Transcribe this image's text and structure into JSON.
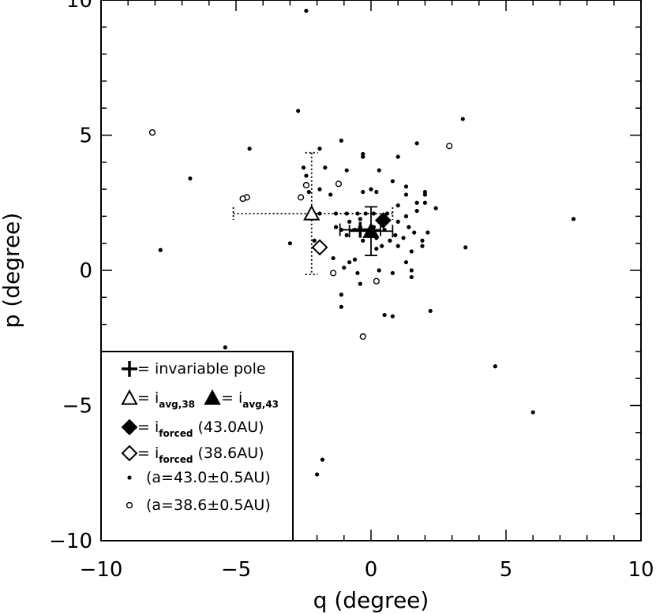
{
  "chart_data": {
    "type": "scatter",
    "title": "",
    "xlabel": "q (degree)",
    "ylabel": "p (degree)",
    "xlim": [
      -10,
      10
    ],
    "ylim": [
      -10,
      10
    ],
    "x_ticks": [
      -10,
      -5,
      0,
      5,
      10
    ],
    "y_ticks": [
      -10,
      -5,
      0,
      5,
      10
    ],
    "x_tick_labels": [
      "−10",
      "−5",
      "0",
      "5",
      "10"
    ],
    "y_tick_labels": [
      "−10",
      "−5",
      "0",
      "5",
      "10"
    ],
    "grid": false,
    "legend_position": "bottom-left",
    "legend": [
      {
        "symbol": "plus",
        "text": "= invariable pole"
      },
      {
        "symbol": "triangle-open",
        "text": "= i",
        "sub": "avg,38",
        "symbol2": "triangle-filled",
        "text2": "= i",
        "sub2": "avg,43"
      },
      {
        "symbol": "diamond-filled",
        "text": "= i",
        "sub": "forced",
        "suffix": " (43.0AU)"
      },
      {
        "symbol": "diamond-open",
        "text": "= i",
        "sub": "forced",
        "suffix": " (38.6AU)"
      },
      {
        "symbol": "dot",
        "text": "(a=43.0±0.5AU)"
      },
      {
        "symbol": "circle-open",
        "text": "(a=38.6±0.5AU)"
      }
    ],
    "series": [
      {
        "name": "(a=43.0±0.5AU)",
        "marker": "dot",
        "points": [
          [
            -2.4,
            9.6
          ],
          [
            3.4,
            5.6
          ],
          [
            -2.7,
            5.9
          ],
          [
            1.7,
            4.7
          ],
          [
            -1.1,
            4.8
          ],
          [
            -1.9,
            4.5
          ],
          [
            -4.5,
            4.5
          ],
          [
            -0.3,
            4.3
          ],
          [
            -0.3,
            4.2
          ],
          [
            1.0,
            4.2
          ],
          [
            -2.5,
            3.8
          ],
          [
            -1.7,
            3.8
          ],
          [
            -0.9,
            3.7
          ],
          [
            0.3,
            3.7
          ],
          [
            -2.4,
            3.5
          ],
          [
            -6.7,
            3.4
          ],
          [
            0.8,
            3.3
          ],
          [
            1.3,
            3.1
          ],
          [
            -1.9,
            3.0
          ],
          [
            0.0,
            3.0
          ],
          [
            -2.3,
            2.9
          ],
          [
            -0.3,
            2.9
          ],
          [
            0.2,
            2.9
          ],
          [
            2.0,
            2.9
          ],
          [
            -1.5,
            2.8
          ],
          [
            1.3,
            2.8
          ],
          [
            2.0,
            2.8
          ],
          [
            1.7,
            2.5
          ],
          [
            2.0,
            2.5
          ],
          [
            1.0,
            2.4
          ],
          [
            2.4,
            2.3
          ],
          [
            1.7,
            2.2
          ],
          [
            -1.9,
            2.1
          ],
          [
            -1.3,
            2.1
          ],
          [
            -0.9,
            2.1
          ],
          [
            -0.5,
            2.1
          ],
          [
            -0.2,
            2.1
          ],
          [
            0.1,
            2.1
          ],
          [
            0.6,
            2.1
          ],
          [
            1.3,
            2.0
          ],
          [
            7.5,
            1.9
          ],
          [
            -0.4,
            1.9
          ],
          [
            -0.8,
            1.8
          ],
          [
            0.3,
            1.8
          ],
          [
            1.0,
            1.8
          ],
          [
            -1.3,
            1.6
          ],
          [
            -0.4,
            1.6
          ],
          [
            0.1,
            1.6
          ],
          [
            1.4,
            1.6
          ],
          [
            -0.6,
            1.5
          ],
          [
            -1.1,
            1.5
          ],
          [
            0.5,
            1.5
          ],
          [
            1.6,
            1.4
          ],
          [
            2.1,
            1.4
          ],
          [
            -0.9,
            1.3
          ],
          [
            0.9,
            1.3
          ],
          [
            1.2,
            1.2
          ],
          [
            0.2,
            1.2
          ],
          [
            0.7,
            1.1
          ],
          [
            -2.1,
            1.1
          ],
          [
            -0.3,
            1.1
          ],
          [
            1.9,
            1.1
          ],
          [
            -3.0,
            1.0
          ],
          [
            0.4,
            0.9
          ],
          [
            1.0,
            0.9
          ],
          [
            1.9,
            0.9
          ],
          [
            3.5,
            0.85
          ],
          [
            -7.8,
            0.75
          ],
          [
            0.2,
            0.8
          ],
          [
            1.5,
            0.7
          ],
          [
            -1.4,
            0.45
          ],
          [
            -0.6,
            0.4
          ],
          [
            1.3,
            0.3
          ],
          [
            -0.8,
            0.3
          ],
          [
            -1.0,
            0.1
          ],
          [
            0.3,
            0.0
          ],
          [
            1.5,
            0.0
          ],
          [
            -0.5,
            -0.1
          ],
          [
            0.8,
            -0.1
          ],
          [
            1.5,
            -0.25
          ],
          [
            -0.4,
            -0.5
          ],
          [
            -1.1,
            -0.9
          ],
          [
            -1.1,
            -1.35
          ],
          [
            2.2,
            -1.5
          ],
          [
            0.5,
            -1.65
          ],
          [
            0.8,
            -1.7
          ],
          [
            -5.4,
            -2.85
          ],
          [
            4.6,
            -3.55
          ],
          [
            6.0,
            -5.25
          ],
          [
            -1.8,
            -7.0
          ],
          [
            -2.0,
            -7.55
          ]
        ]
      },
      {
        "name": "(a=38.6±0.5AU)",
        "marker": "circle-open",
        "points": [
          [
            -8.1,
            5.1
          ],
          [
            2.9,
            4.6
          ],
          [
            -1.2,
            3.2
          ],
          [
            -2.4,
            3.15
          ],
          [
            -4.6,
            2.7
          ],
          [
            -4.75,
            2.65
          ],
          [
            -2.6,
            2.7
          ],
          [
            -1.4,
            -0.1
          ],
          [
            0.2,
            -0.4
          ],
          [
            -0.3,
            -2.45
          ]
        ]
      }
    ],
    "special_points": [
      {
        "name": "invariable pole",
        "marker": "plus",
        "x": -0.4,
        "y": 1.5,
        "xerr": 0.75,
        "yerr": 0
      },
      {
        "name": "i avg,38",
        "marker": "triangle-open",
        "x": -2.2,
        "y": 2.1,
        "xerr_low": 2.9,
        "xerr_high": 3.0,
        "yerr": 2.25,
        "errstyle": "dotted"
      },
      {
        "name": "i avg,43",
        "marker": "triangle-filled",
        "x": 0.0,
        "y": 1.45,
        "xerr": 0.8,
        "yerr": 0.9
      },
      {
        "name": "i forced (43.0AU)",
        "marker": "diamond-filled",
        "x": 0.45,
        "y": 1.85
      },
      {
        "name": "i forced (38.6AU)",
        "marker": "diamond-open",
        "x": -1.9,
        "y": 0.85
      }
    ]
  }
}
